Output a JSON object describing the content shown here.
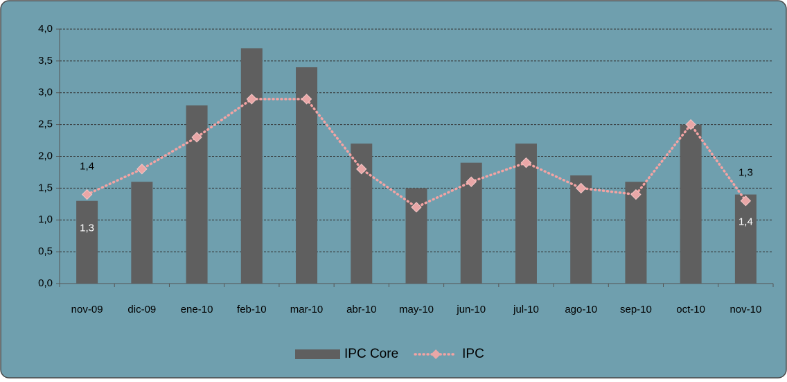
{
  "chart_data": {
    "type": "bar",
    "categories": [
      "nov-09",
      "dic-09",
      "ene-10",
      "feb-10",
      "mar-10",
      "abr-10",
      "may-10",
      "jun-10",
      "jul-10",
      "ago-10",
      "sep-10",
      "oct-10",
      "nov-10"
    ],
    "series": [
      {
        "name": "IPC Core",
        "type": "bar",
        "color": "#5f5f5f",
        "values": [
          1.3,
          1.6,
          2.8,
          3.7,
          3.4,
          2.2,
          1.5,
          1.9,
          2.2,
          1.7,
          1.6,
          2.5,
          1.4
        ],
        "value_labels": [
          "1,3",
          null,
          null,
          null,
          null,
          null,
          null,
          null,
          null,
          null,
          null,
          null,
          "1,4"
        ]
      },
      {
        "name": "IPC",
        "type": "line",
        "color": "#f4a3a3",
        "values": [
          1.4,
          1.8,
          2.3,
          2.9,
          2.9,
          1.8,
          1.2,
          1.6,
          1.9,
          1.5,
          1.4,
          2.5,
          1.3
        ],
        "value_labels": [
          "1,4",
          null,
          null,
          null,
          null,
          null,
          null,
          null,
          null,
          null,
          null,
          null,
          "1,3"
        ]
      }
    ],
    "ylim": [
      0,
      4
    ],
    "yticks": [
      {
        "value": 0,
        "label": "0,0"
      },
      {
        "value": 0.5,
        "label": "0,5"
      },
      {
        "value": 1,
        "label": "1,0"
      },
      {
        "value": 1.5,
        "label": "1,5"
      },
      {
        "value": 2,
        "label": "2,0"
      },
      {
        "value": 2.5,
        "label": "2,5"
      },
      {
        "value": 3,
        "label": "3,0"
      },
      {
        "value": 3.5,
        "label": "3,5"
      },
      {
        "value": 4,
        "label": "4,0"
      }
    ],
    "grid": true,
    "legend": "bottom"
  }
}
